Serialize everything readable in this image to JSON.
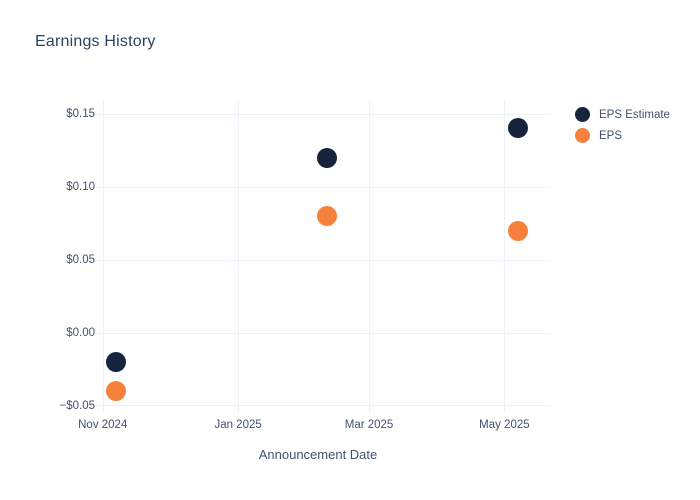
{
  "chart_data": {
    "type": "scatter",
    "title": "Earnings History",
    "xlabel": "Announcement Date",
    "ylabel": "",
    "grid": true,
    "legend_position": "outside-right-top",
    "colors": {
      "background": "#ffffff",
      "grid": "#eef1f7",
      "tick_text": "#42526e",
      "title_text": "#2b3f5e"
    },
    "x_range": [
      "2024-10-24",
      "2025-05-22"
    ],
    "y_range": [
      -0.05,
      0.1595
    ],
    "x_ticks": [
      {
        "date": "2024-11-01",
        "label": "Nov 2024"
      },
      {
        "date": "2025-01-01",
        "label": "Jan 2025"
      },
      {
        "date": "2025-03-01",
        "label": "Mar 2025"
      },
      {
        "date": "2025-05-01",
        "label": "May 2025"
      }
    ],
    "y_ticks": [
      {
        "value": 0.15,
        "label": "$0.15"
      },
      {
        "value": 0.1,
        "label": "$0.10"
      },
      {
        "value": 0.05,
        "label": "$0.05"
      },
      {
        "value": 0.0,
        "label": "$0.00"
      },
      {
        "value": -0.05,
        "label": "−$0.05"
      }
    ],
    "x": [
      "2024-11-07",
      "2025-02-10",
      "2025-05-07"
    ],
    "series": [
      {
        "name": "EPS Estimate",
        "color": "#16243e",
        "values": [
          -0.02,
          0.12,
          0.14
        ]
      },
      {
        "name": "EPS",
        "color": "#f5813c",
        "values": [
          -0.04,
          0.08,
          0.07
        ]
      }
    ]
  }
}
